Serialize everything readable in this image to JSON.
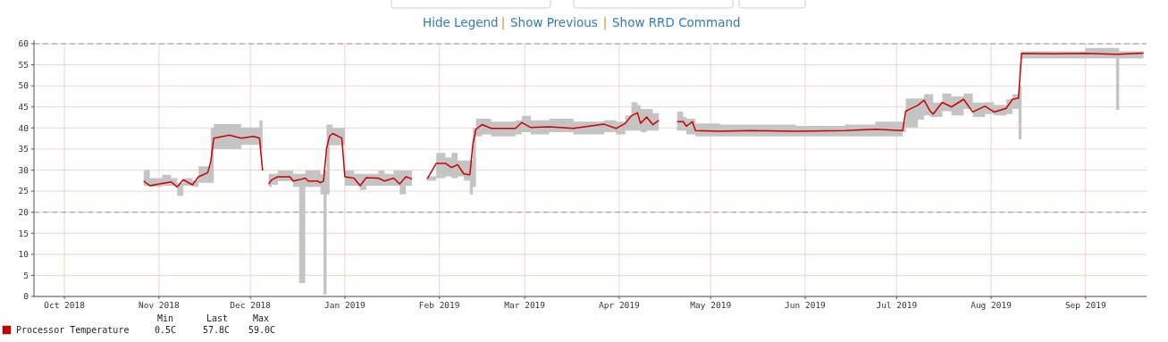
{
  "chart_data": {
    "type": "line",
    "xlim": [
      "2018-09-21",
      "2019-09-21"
    ],
    "xticks": [
      {
        "value": "2018-10-01",
        "label": "Oct 2018"
      },
      {
        "value": "2018-11-01",
        "label": "Nov 2018"
      },
      {
        "value": "2018-12-01",
        "label": "Dec 2018"
      },
      {
        "value": "2019-01-01",
        "label": "Jan 2019"
      },
      {
        "value": "2019-02-01",
        "label": "Feb 2019"
      },
      {
        "value": "2019-03-01",
        "label": "Mar 2019"
      },
      {
        "value": "2019-04-01",
        "label": "Apr 2019"
      },
      {
        "value": "2019-05-01",
        "label": "May 2019"
      },
      {
        "value": "2019-06-01",
        "label": "Jun 2019"
      },
      {
        "value": "2019-07-01",
        "label": "Jul 2019"
      },
      {
        "value": "2019-08-01",
        "label": "Aug 2019"
      },
      {
        "value": "2019-09-01",
        "label": "Sep 2019"
      }
    ],
    "ylim": [
      0,
      60
    ],
    "yticks": [
      0,
      5,
      10,
      15,
      20,
      25,
      30,
      35,
      40,
      45,
      50,
      55,
      60
    ],
    "grid": true,
    "legend": "bottom left",
    "ref_lines": [
      {
        "axis": "y",
        "value": 20,
        "color": "#999999",
        "line_style": "dashed"
      },
      {
        "axis": "y",
        "value": 60,
        "color": "#999999",
        "line_style": "dashed"
      }
    ],
    "annotations": [
      "Min",
      "Last",
      "Max",
      "0.5C",
      "57.8C",
      "59.0C",
      "Hide Legend",
      "|",
      "Show Previous",
      "|",
      "Show RRD Command"
    ],
    "x": [
      "2018-10-27",
      "2018-10-29",
      "2018-11-02",
      "2018-11-05",
      "2018-11-07",
      "2018-11-09",
      "2018-11-12",
      "2018-11-14",
      "2018-11-17",
      "2018-11-18",
      "2018-11-19",
      "2018-11-24",
      "2018-11-28",
      "2018-12-02",
      "2018-12-04",
      "2018-12-05",
      "2018-12-06",
      "2018-12-07",
      "2018-12-08",
      "2018-12-10",
      "2018-12-14",
      "2018-12-15",
      "2018-12-17",
      "2018-12-19",
      "2018-12-20",
      "2018-12-23",
      "2018-12-24",
      "2018-12-25",
      "2018-12-26",
      "2018-12-27",
      "2018-12-28",
      "2018-12-31",
      "2019-01-01",
      "2019-01-04",
      "2019-01-06",
      "2019-01-08",
      "2019-01-12",
      "2019-01-14",
      "2019-01-17",
      "2019-01-19",
      "2019-01-21",
      "2019-01-23",
      "2019-01-26",
      "2019-01-28",
      "2019-01-31",
      "2019-02-03",
      "2019-02-05",
      "2019-02-07",
      "2019-02-09",
      "2019-02-11",
      "2019-02-12",
      "2019-02-13",
      "2019-02-15",
      "2019-02-18",
      "2019-02-26",
      "2019-02-28",
      "2019-03-03",
      "2019-03-09",
      "2019-03-17",
      "2019-03-27",
      "2019-03-31",
      "2019-04-03",
      "2019-04-05",
      "2019-04-07",
      "2019-04-08",
      "2019-04-10",
      "2019-04-12",
      "2019-04-14",
      "2019-04-17",
      "2019-04-20",
      "2019-04-22",
      "2019-04-23",
      "2019-04-25",
      "2019-04-26",
      "2019-05-04",
      "2019-05-14",
      "2019-05-29",
      "2019-06-14",
      "2019-06-24",
      "2019-07-03",
      "2019-07-04",
      "2019-07-08",
      "2019-07-10",
      "2019-07-12",
      "2019-07-13",
      "2019-07-16",
      "2019-07-19",
      "2019-07-23",
      "2019-07-26",
      "2019-07-30",
      "2019-08-02",
      "2019-08-06",
      "2019-08-08",
      "2019-08-10",
      "2019-08-11",
      "2019-08-21",
      "2019-09-01",
      "2019-09-11",
      "2019-09-12",
      "2019-09-20"
    ],
    "series": [
      {
        "name": "Processor Temperature",
        "color": "#cc0000",
        "values": [
          27.4,
          26.3,
          26.8,
          27.2,
          26.0,
          27.7,
          26.5,
          28.4,
          29.4,
          32,
          37.6,
          38.3,
          37.6,
          38,
          37.6,
          29.9,
          null,
          26.7,
          27.7,
          28.4,
          28.4,
          27.4,
          27.7,
          28.1,
          27.4,
          27.4,
          27,
          27.4,
          35.1,
          38.1,
          38.7,
          37.6,
          28.4,
          28.1,
          26.3,
          28.2,
          28.1,
          27.4,
          28.1,
          26.7,
          28.4,
          27.9,
          null,
          27.9,
          31.6,
          31.6,
          30.6,
          31.3,
          29.1,
          28.9,
          36.2,
          39.7,
          40.8,
          39.9,
          39.9,
          41.3,
          40.1,
          40.3,
          39.9,
          40.9,
          39.9,
          41.1,
          42.9,
          43.6,
          41.1,
          42.6,
          40.8,
          41.8,
          null,
          41.5,
          41.5,
          40.4,
          41.5,
          39.4,
          39.2,
          39.4,
          39.2,
          39.4,
          39.7,
          39.4,
          44,
          45.4,
          46.6,
          44,
          43.3,
          46.1,
          45,
          46.8,
          43.8,
          45.2,
          43.8,
          44.7,
          46.8,
          47.1,
          57.7,
          57.6,
          57.7,
          57.5,
          57.5,
          57.8
        ],
        "lower": [
          26.3,
          26.1,
          26.3,
          26.3,
          23.9,
          26.3,
          26,
          27,
          27,
          27,
          35,
          35,
          36,
          36,
          35,
          25,
          null,
          26,
          26.5,
          27.4,
          27.4,
          26,
          3.2,
          26,
          26,
          26,
          24.2,
          0.5,
          24.2,
          35.9,
          35.9,
          35.9,
          26.3,
          26.3,
          25.3,
          26.3,
          26.3,
          26.3,
          26.3,
          24.2,
          26.3,
          26.3,
          null,
          27.5,
          28.1,
          28.5,
          28.1,
          28.5,
          27.5,
          24.2,
          26,
          38,
          38.5,
          38,
          38.5,
          39,
          38.5,
          39,
          38.5,
          39,
          38.5,
          39.4,
          39.4,
          39.4,
          39,
          39.4,
          39.4,
          39.4,
          null,
          39.4,
          39.4,
          38.5,
          38.5,
          38,
          38,
          38,
          38,
          38,
          38,
          39,
          40.1,
          42,
          43,
          42.6,
          42.6,
          44,
          43,
          44.5,
          42.6,
          43.3,
          43,
          43.3,
          44.5,
          37.3,
          56.5,
          56.5,
          56.5,
          44.3,
          56.5,
          56.5
        ],
        "upper": [
          30,
          28.1,
          28.9,
          28.1,
          27,
          28.1,
          27.5,
          30.9,
          30.9,
          40,
          40.9,
          40.9,
          40.1,
          40.1,
          41.8,
          40,
          null,
          29.1,
          29.1,
          29.9,
          29.9,
          29.1,
          29.1,
          29.9,
          29.9,
          29.9,
          29.1,
          29.9,
          40.8,
          40.8,
          40,
          40,
          29.9,
          29.1,
          29.1,
          29.1,
          29.9,
          29.1,
          29.9,
          29.9,
          29.9,
          28.9,
          null,
          28.5,
          34.1,
          33,
          34.1,
          32.3,
          32.3,
          32.3,
          40,
          42.2,
          42.2,
          41.5,
          41.8,
          42.9,
          41.8,
          42.2,
          41.5,
          41.8,
          41.5,
          43,
          46.1,
          45.5,
          44.5,
          44.5,
          43.5,
          44.8,
          null,
          43.9,
          42.6,
          42.2,
          42.2,
          41.1,
          40.8,
          40.8,
          40.5,
          40.8,
          41.5,
          41.5,
          47,
          47,
          48,
          48,
          46,
          48.2,
          47.5,
          48.2,
          46,
          46.1,
          45.5,
          46.8,
          48,
          50,
          58.2,
          58.2,
          59,
          59,
          58.2,
          58.2
        ]
      }
    ]
  }
}
